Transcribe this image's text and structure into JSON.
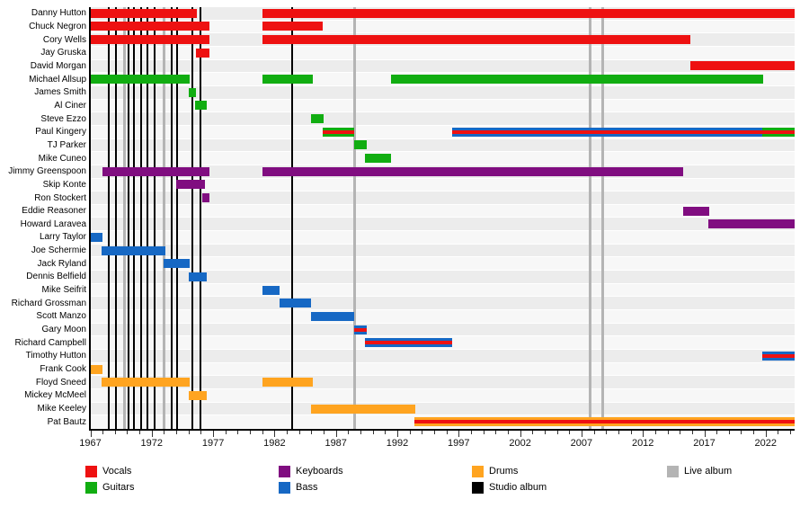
{
  "chart_data": {
    "type": "timeline",
    "title": "",
    "x_axis": {
      "min_year": 1967,
      "max_year": 2024.4,
      "tick_labels": [
        "1967",
        "1972",
        "1977",
        "1982",
        "1987",
        "1992",
        "1997",
        "2002",
        "2007",
        "2012",
        "2017",
        "2022"
      ],
      "major_tick_interval": 5,
      "minor_tick_interval": 1,
      "grid": "off"
    },
    "colors": {
      "vocals": "#ee1111",
      "guitars": "#11ad11",
      "keyboards": "#800d80",
      "bass": "#1668c4",
      "drums": "#ffa420",
      "studio_album": "#000000",
      "live_album": "#b4b4b4"
    },
    "members": [
      {
        "name": "Danny Hutton",
        "periods": [
          {
            "start": 1967.0,
            "end": 1975.7,
            "roles": [
              "vocals"
            ]
          },
          {
            "start": 1981.0,
            "end": 2024.35,
            "roles": [
              "vocals"
            ]
          }
        ]
      },
      {
        "name": "Chuck Negron",
        "periods": [
          {
            "start": 1967.0,
            "end": 1976.7,
            "roles": [
              "vocals"
            ]
          },
          {
            "start": 1981.0,
            "end": 1985.9,
            "roles": [
              "vocals"
            ]
          }
        ]
      },
      {
        "name": "Cory Wells",
        "periods": [
          {
            "start": 1967.0,
            "end": 1976.7,
            "roles": [
              "vocals"
            ]
          },
          {
            "start": 1981.0,
            "end": 2015.9,
            "roles": [
              "vocals"
            ]
          }
        ]
      },
      {
        "name": "Jay Gruska",
        "periods": [
          {
            "start": 1975.6,
            "end": 1976.7,
            "roles": [
              "vocals"
            ]
          }
        ]
      },
      {
        "name": "David Morgan",
        "periods": [
          {
            "start": 2015.9,
            "end": 2024.35,
            "roles": [
              "vocals"
            ]
          }
        ]
      },
      {
        "name": "Michael Allsup",
        "periods": [
          {
            "start": 1967.0,
            "end": 1975.1,
            "roles": [
              "guitars"
            ]
          },
          {
            "start": 1981.0,
            "end": 1985.1,
            "roles": [
              "guitars"
            ]
          },
          {
            "start": 1991.5,
            "end": 2021.8,
            "roles": [
              "guitars"
            ]
          }
        ]
      },
      {
        "name": "James Smith",
        "periods": [
          {
            "start": 1975.0,
            "end": 1975.6,
            "roles": [
              "guitars"
            ]
          }
        ]
      },
      {
        "name": "Al Ciner",
        "periods": [
          {
            "start": 1975.5,
            "end": 1976.5,
            "roles": [
              "guitars"
            ]
          }
        ]
      },
      {
        "name": "Steve Ezzo",
        "periods": [
          {
            "start": 1985.0,
            "end": 1986.0,
            "roles": [
              "guitars"
            ]
          }
        ]
      },
      {
        "name": "Paul Kingery",
        "periods": [
          {
            "start": 1985.9,
            "end": 1988.5,
            "roles": [
              "guitars",
              "vocals"
            ]
          },
          {
            "start": 1996.5,
            "end": 2021.7,
            "roles": [
              "bass",
              "vocals"
            ]
          },
          {
            "start": 2021.7,
            "end": 2024.35,
            "roles": [
              "guitars",
              "vocals"
            ]
          }
        ]
      },
      {
        "name": "TJ Parker",
        "periods": [
          {
            "start": 1988.5,
            "end": 1989.5,
            "roles": [
              "guitars"
            ]
          }
        ]
      },
      {
        "name": "Mike Cuneo",
        "periods": [
          {
            "start": 1989.4,
            "end": 1991.5,
            "roles": [
              "guitars"
            ]
          }
        ]
      },
      {
        "name": "Jimmy Greenspoon",
        "periods": [
          {
            "start": 1968.0,
            "end": 1976.7,
            "roles": [
              "keyboards"
            ]
          },
          {
            "start": 1981.0,
            "end": 2015.3,
            "roles": [
              "keyboards"
            ]
          }
        ]
      },
      {
        "name": "Skip Konte",
        "periods": [
          {
            "start": 1974.0,
            "end": 1976.3,
            "roles": [
              "keyboards"
            ]
          }
        ]
      },
      {
        "name": "Ron Stockert",
        "periods": [
          {
            "start": 1976.1,
            "end": 1976.7,
            "roles": [
              "keyboards"
            ]
          }
        ]
      },
      {
        "name": "Eddie Reasoner",
        "periods": [
          {
            "start": 2015.3,
            "end": 2017.4,
            "roles": [
              "keyboards"
            ]
          }
        ]
      },
      {
        "name": "Howard Laravea",
        "periods": [
          {
            "start": 2017.3,
            "end": 2024.35,
            "roles": [
              "keyboards"
            ]
          }
        ]
      },
      {
        "name": "Larry Taylor",
        "periods": [
          {
            "start": 1967.0,
            "end": 1968.0,
            "roles": [
              "bass"
            ]
          }
        ]
      },
      {
        "name": "Joe Schermie",
        "periods": [
          {
            "start": 1967.9,
            "end": 1973.1,
            "roles": [
              "bass"
            ]
          }
        ]
      },
      {
        "name": "Jack Ryland",
        "periods": [
          {
            "start": 1973.0,
            "end": 1975.1,
            "roles": [
              "bass"
            ]
          }
        ]
      },
      {
        "name": "Dennis Belfield",
        "periods": [
          {
            "start": 1975.0,
            "end": 1976.5,
            "roles": [
              "bass"
            ]
          }
        ]
      },
      {
        "name": "Mike Seifrit",
        "periods": [
          {
            "start": 1981.0,
            "end": 1982.4,
            "roles": [
              "bass"
            ]
          }
        ]
      },
      {
        "name": "Richard Grossman",
        "periods": [
          {
            "start": 1982.4,
            "end": 1985.0,
            "roles": [
              "bass"
            ]
          }
        ]
      },
      {
        "name": "Scott Manzo",
        "periods": [
          {
            "start": 1985.0,
            "end": 1988.5,
            "roles": [
              "bass"
            ]
          }
        ]
      },
      {
        "name": "Gary Moon",
        "periods": [
          {
            "start": 1988.5,
            "end": 1989.5,
            "roles": [
              "bass",
              "vocals"
            ]
          }
        ]
      },
      {
        "name": "Richard Campbell",
        "periods": [
          {
            "start": 1989.4,
            "end": 1996.5,
            "roles": [
              "bass",
              "vocals"
            ]
          }
        ]
      },
      {
        "name": "Timothy Hutton",
        "periods": [
          {
            "start": 2021.7,
            "end": 2024.35,
            "roles": [
              "bass",
              "vocals"
            ]
          }
        ]
      },
      {
        "name": "Frank Cook",
        "periods": [
          {
            "start": 1967.0,
            "end": 1968.0,
            "roles": [
              "drums"
            ]
          }
        ]
      },
      {
        "name": "Floyd Sneed",
        "periods": [
          {
            "start": 1967.9,
            "end": 1975.1,
            "roles": [
              "drums"
            ]
          },
          {
            "start": 1981.0,
            "end": 1985.1,
            "roles": [
              "drums"
            ]
          }
        ]
      },
      {
        "name": "Mickey McMeel",
        "periods": [
          {
            "start": 1975.0,
            "end": 1976.5,
            "roles": [
              "drums"
            ]
          }
        ]
      },
      {
        "name": "Mike Keeley",
        "periods": [
          {
            "start": 1985.0,
            "end": 1993.5,
            "roles": [
              "drums"
            ]
          }
        ]
      },
      {
        "name": "Pat Bautz",
        "periods": [
          {
            "start": 1993.4,
            "end": 2024.35,
            "roles": [
              "drums",
              "vocals"
            ]
          }
        ]
      }
    ],
    "albums": {
      "studio": [
        1968.5,
        1969.1,
        1970.1,
        1970.55,
        1971.1,
        1971.65,
        1972.2,
        1973.65,
        1974.1,
        1975.3,
        1975.95,
        1983.4
      ],
      "live": [
        1969.8,
        1973.0,
        1988.55,
        2007.7,
        2008.75
      ]
    },
    "legend_position": "bottom"
  },
  "legend": {
    "items": [
      {
        "label": "Vocals",
        "role": "vocals",
        "col": 0,
        "row": 0
      },
      {
        "label": "Guitars",
        "role": "guitars",
        "col": 0,
        "row": 1
      },
      {
        "label": "Keyboards",
        "role": "keyboards",
        "col": 1,
        "row": 0
      },
      {
        "label": "Bass",
        "role": "bass",
        "col": 1,
        "row": 1
      },
      {
        "label": "Drums",
        "role": "drums",
        "col": 2,
        "row": 0
      },
      {
        "label": "Studio album",
        "role": "studio_album",
        "col": 2,
        "row": 1
      },
      {
        "label": "Live album",
        "role": "live_album",
        "col": 3,
        "row": 0
      }
    ]
  }
}
